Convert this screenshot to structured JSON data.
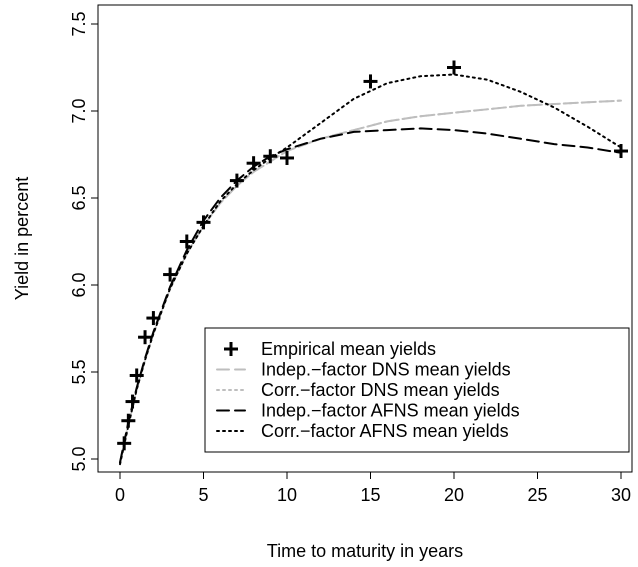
{
  "chart_data": {
    "type": "line",
    "title": "",
    "xlabel": "Time to maturity in years",
    "ylabel": "Yield in percent",
    "xlim": [
      0,
      30
    ],
    "ylim": [
      5.0,
      7.5
    ],
    "xticks": [
      0,
      5,
      10,
      15,
      20,
      25,
      30
    ],
    "xtick_labels": [
      "0",
      "5",
      "10",
      "15",
      "20",
      "25",
      "30"
    ],
    "yticks": [
      5.0,
      5.5,
      6.0,
      6.5,
      7.0,
      7.5
    ],
    "ytick_labels": [
      "5.0",
      "5.5",
      "6.0",
      "6.5",
      "7.0",
      "7.5"
    ],
    "grid": false,
    "legend_position": "bottom-right",
    "empirical": {
      "name": "Empirical mean yields",
      "marker": "plus",
      "color": "#000000",
      "x": [
        0.25,
        0.5,
        0.75,
        1,
        1.5,
        2,
        3,
        4,
        5,
        7,
        8,
        9,
        10,
        15,
        20,
        30
      ],
      "y": [
        5.09,
        5.22,
        5.33,
        5.48,
        5.7,
        5.81,
        6.06,
        6.25,
        6.36,
        6.6,
        6.7,
        6.74,
        6.73,
        7.17,
        7.25,
        6.77
      ]
    },
    "series": [
      {
        "name": "Indep.−factor DNS mean yields",
        "color": "#bebebe",
        "dash": "dashed",
        "x": [
          0,
          0.5,
          1,
          1.5,
          2,
          3,
          4,
          5,
          6,
          7,
          8,
          9,
          10,
          12,
          14,
          16,
          18,
          20,
          22,
          24,
          26,
          28,
          30
        ],
        "y": [
          4.98,
          5.2,
          5.4,
          5.57,
          5.72,
          5.98,
          6.18,
          6.34,
          6.47,
          6.57,
          6.65,
          6.71,
          6.77,
          6.84,
          6.89,
          6.94,
          6.97,
          6.99,
          7.01,
          7.03,
          7.04,
          7.05,
          7.06
        ]
      },
      {
        "name": "Corr.−factor DNS mean yields",
        "color": "#bebebe",
        "dash": "dotted",
        "x": [
          0,
          0.5,
          1,
          1.5,
          2,
          3,
          4,
          5,
          6,
          7,
          8,
          9,
          10,
          12,
          14,
          16,
          18,
          20,
          22,
          24,
          26,
          28,
          30
        ],
        "y": [
          4.98,
          5.2,
          5.4,
          5.57,
          5.72,
          5.98,
          6.18,
          6.34,
          6.47,
          6.57,
          6.65,
          6.71,
          6.77,
          6.84,
          6.89,
          6.94,
          6.97,
          6.99,
          7.01,
          7.03,
          7.04,
          7.05,
          7.06
        ]
      },
      {
        "name": "Indep.−factor AFNS mean yields",
        "color": "#000000",
        "dash": "dashed",
        "x": [
          0,
          0.5,
          1,
          1.5,
          2,
          3,
          4,
          5,
          6,
          7,
          8,
          9,
          10,
          12,
          14,
          16,
          18,
          20,
          22,
          24,
          26,
          28,
          30
        ],
        "y": [
          4.98,
          5.21,
          5.41,
          5.58,
          5.73,
          5.99,
          6.2,
          6.37,
          6.5,
          6.6,
          6.68,
          6.74,
          6.78,
          6.84,
          6.88,
          6.89,
          6.9,
          6.89,
          6.87,
          6.84,
          6.81,
          6.79,
          6.76
        ]
      },
      {
        "name": "Corr.−factor AFNS mean yields",
        "color": "#000000",
        "dash": "dotted",
        "x": [
          0,
          0.5,
          1,
          1.5,
          2,
          3,
          4,
          5,
          6,
          7,
          8,
          9,
          10,
          12,
          14,
          16,
          18,
          20,
          22,
          24,
          26,
          28,
          30
        ],
        "y": [
          4.97,
          5.19,
          5.4,
          5.57,
          5.72,
          5.98,
          6.18,
          6.34,
          6.48,
          6.58,
          6.66,
          6.73,
          6.79,
          6.93,
          7.07,
          7.16,
          7.2,
          7.21,
          7.18,
          7.11,
          7.02,
          6.91,
          6.79
        ]
      }
    ]
  }
}
